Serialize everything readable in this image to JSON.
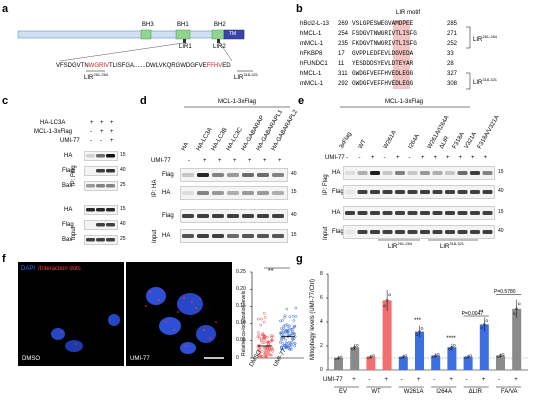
{
  "panel_labels": {
    "a": "a",
    "b": "b",
    "c": "c",
    "d": "d",
    "e": "e",
    "f": "f",
    "g": "g"
  },
  "panel_a": {
    "domains": [
      "BH3",
      "BH1",
      "BH2",
      "TM"
    ],
    "lir_labels": [
      "LIR1",
      "LIR2"
    ],
    "seq1": "VFSDGVTN",
    "seq1_red": "WGRIV",
    "seq1_end": "TLISFGA",
    "seq_mid": "DWLVKQRGWDGFVE",
    "seq2_red": "FFHV",
    "seq2_end": "ED",
    "lir_a1": "LIR",
    "lir_a1_range": "261-264",
    "lir_a2": "LIR",
    "lir_a2_range": "318-321"
  },
  "panel_b": {
    "header": "LIR motif",
    "rows": [
      {
        "name": "hBcl2-L-13",
        "start": "269",
        "seq": "VSLGPESWEGVAMDPEE",
        "end": "285"
      },
      {
        "name": "hMCL-1",
        "start": "254",
        "seq": "FSDGVTNWGRIVTLISFG",
        "end": "271"
      },
      {
        "name": "mMCL-1",
        "start": "235",
        "seq": "FKDGVTNWGRIVTLISFG",
        "end": "252"
      },
      {
        "name": "hFKBP8",
        "start": "17",
        "seq": "GVPPLEDFEVLDGVEDA",
        "end": "33"
      },
      {
        "name": "hFUNDC1",
        "start": "11",
        "seq": "YESDDDSYEVLDTEYAR",
        "end": "28"
      },
      {
        "name": "hMCL-1",
        "start": "311",
        "seq": "GWDGFVEFFHVEDLEGG",
        "end": "327"
      },
      {
        "name": "mMCL-1",
        "start": "292",
        "seq": "GWDGFVEFFHVEDLEGG",
        "end": "308"
      }
    ],
    "side1": "LIR",
    "side1_range": "261-264",
    "side2": "LIR",
    "side2_range": "318-321"
  },
  "panel_c": {
    "row_labels": [
      "HA-LC3A",
      "MCL-1-3xFlag",
      "UMI-77"
    ],
    "signs": [
      [
        "+",
        "+",
        "+"
      ],
      [
        "-",
        "+",
        "+"
      ],
      [
        "-",
        "-",
        "+"
      ]
    ],
    "ip": "IP: Flag",
    "input": "Input",
    "blots": [
      "HA",
      "Flag",
      "Bax",
      "HA",
      "Flag",
      "Bax"
    ],
    "markers": [
      "15",
      "40",
      "25",
      "15",
      "40",
      "25"
    ]
  },
  "panel_d": {
    "header": "MCL-1-3xFlag",
    "lanes": [
      "HA",
      "HA-LC3A",
      "HA-LC3B",
      "HA-LC3C",
      "HA-GABARAP",
      "HA-GABARAPL1",
      "HA-GABARAPL2"
    ],
    "umi_label": "UMI-77",
    "umi_signs": [
      "-",
      "+",
      "+",
      "+",
      "+",
      "+",
      "+"
    ],
    "ip": "IP: HA",
    "input": "Input",
    "blots": [
      "Flag",
      "HA",
      "Flag",
      "HA"
    ],
    "markers": [
      "40",
      "15",
      "40",
      "15"
    ]
  },
  "panel_e": {
    "header": "MCL-1-3xFlag",
    "lanes": [
      "3xFlag",
      "WT",
      "W261A",
      "I264A",
      "W261A/I264A",
      "ΔLIR",
      "F318A",
      "V321A",
      "F318A/V321A"
    ],
    "lane_groups": [
      "3xFlag",
      "WT",
      "WT",
      "W261A",
      "W261A",
      "I264A",
      "I264A",
      "W261A/I264A",
      "ΔLIR",
      "F318A",
      "V321A",
      "F318A/V321A"
    ],
    "umi_label": "UMI-77",
    "umi_signs": [
      "-",
      "-",
      "+",
      "-",
      "+",
      "-",
      "+",
      "+",
      "+",
      "+",
      "+",
      "+"
    ],
    "ip": "IP: Flag",
    "input": "Input",
    "blots": [
      "HA",
      "Flag",
      "HA",
      "Flag"
    ],
    "markers": [
      "15",
      "40",
      "15",
      "40"
    ],
    "bracket1": "LIR",
    "bracket1_range": "261-264",
    "bracket2": "LIR",
    "bracket2_range": "318-321"
  },
  "panel_f": {
    "legend_dapi": "DAPI",
    "legend_dots": "/Interaction dots",
    "img1": "DMSO",
    "img2": "UMI-77",
    "ylabel": "Relative co-localization levels",
    "sig": "**",
    "xcats": [
      "DMSO",
      "UMI-77"
    ],
    "ylim": [
      0,
      0.25
    ],
    "yticks": [
      "0",
      "0.05",
      "0.10",
      "0.15",
      "0.20",
      "0.25"
    ]
  },
  "chart_data": {
    "type": "bar",
    "ylabel": "Mitophagy levels (UMI-77/Ctrl)",
    "ylim": [
      0,
      8
    ],
    "yticks": [
      "0",
      "2",
      "4",
      "6",
      "8"
    ],
    "groups": [
      "EV",
      "WT",
      "W261A",
      "I264A",
      "ΔLIR",
      "FA/VA"
    ],
    "umi_label": "UMI-77",
    "umi_signs": [
      "-",
      "+",
      "-",
      "+",
      "-",
      "+",
      "-",
      "+",
      "-",
      "+",
      "-",
      "+"
    ],
    "values": [
      1.0,
      1.9,
      1.1,
      5.8,
      1.1,
      3.2,
      1.2,
      1.9,
      1.1,
      3.8,
      1.2,
      5.1
    ],
    "colors": [
      "#8a8a8a",
      "#8a8a8a",
      "#f26f6f",
      "#f26f6f",
      "#3b6fe0",
      "#3b6fe0",
      "#3b6fe0",
      "#3b6fe0",
      "#3b6fe0",
      "#3b6fe0",
      "#8a8a8a",
      "#8a8a8a"
    ],
    "stars": [
      "",
      "",
      "",
      "",
      "",
      "***",
      "",
      "****",
      "",
      "**",
      "",
      " "
    ],
    "annotations": [
      {
        "text": "P=0.0047",
        "group": "ΔLIR"
      },
      {
        "text": "P=0.5780",
        "group": "FA/VA"
      }
    ]
  }
}
